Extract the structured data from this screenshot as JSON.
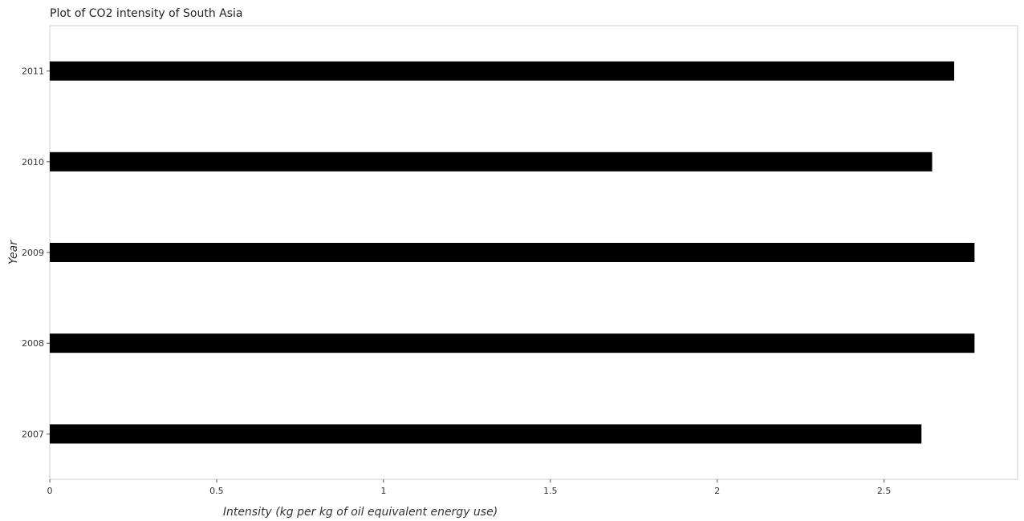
{
  "chart_data": {
    "type": "bar",
    "orientation": "horizontal",
    "title": "Plot of CO2 intensity of South Asia",
    "xlabel": "Intensity (kg per kg of oil equivalent energy use)",
    "ylabel": "Year",
    "categories": [
      "2007",
      "2008",
      "2009",
      "2010",
      "2011"
    ],
    "values": [
      2.612,
      2.771,
      2.771,
      2.644,
      2.71
    ],
    "xlim": [
      0,
      2.9
    ],
    "xticks": [
      0,
      0.5,
      1,
      1.5,
      2,
      2.5
    ],
    "xtick_labels": [
      "0",
      "0.5",
      "1",
      "1.5",
      "2",
      "2.5"
    ],
    "bar_color": "#000000",
    "grid": false,
    "legend": "none"
  }
}
